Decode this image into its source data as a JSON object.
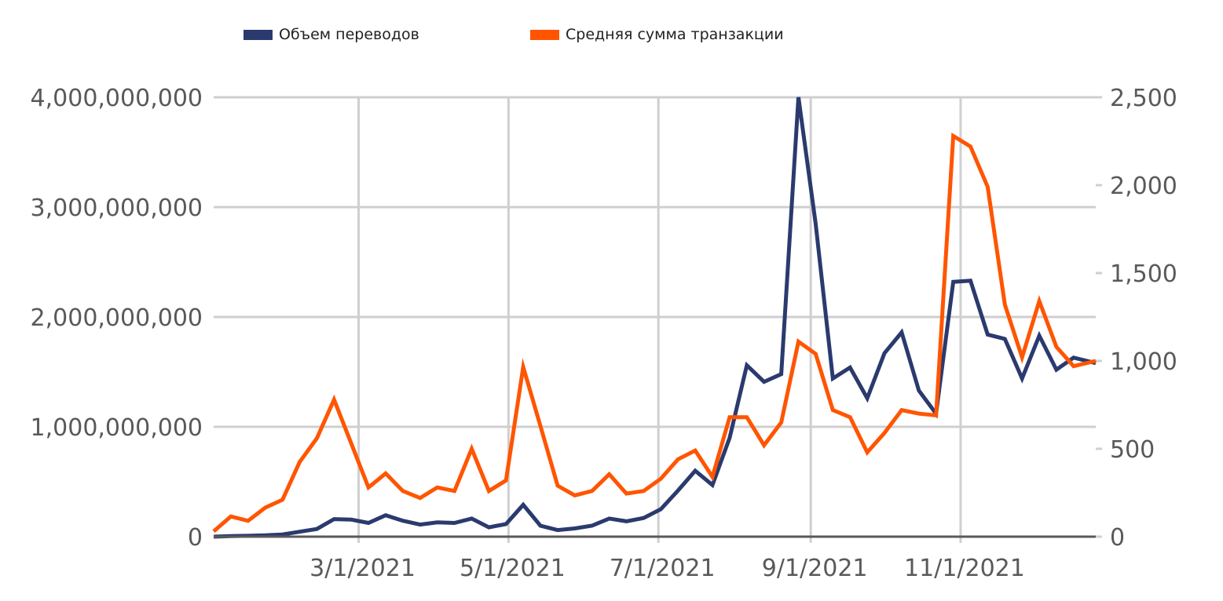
{
  "chart_data": {
    "type": "line",
    "legend_position": "top",
    "grid": true,
    "x_axis": {
      "ticks": [
        "3/1/2021",
        "5/1/2021",
        "7/1/2021",
        "9/1/2021",
        "11/1/2021"
      ],
      "range": [
        "2021-01-01",
        "2021-12-26"
      ]
    },
    "y_left": {
      "ticks": [
        "4,000,000,000",
        "3,000,000,000",
        "2,000,000,000",
        "1,000,000,000",
        "0"
      ],
      "tick_values": [
        4000000000,
        3000000000,
        2000000000,
        1000000000,
        0
      ],
      "ylim": [
        0,
        4000000000
      ]
    },
    "y_right": {
      "ticks": [
        "2,500",
        "2,000",
        "1,500",
        "1,000",
        "500",
        "0"
      ],
      "tick_values": [
        2500,
        2000,
        1500,
        1000,
        500,
        0
      ],
      "ylim": [
        0,
        2500
      ]
    },
    "x": [
      "2021-01-01",
      "2021-01-08",
      "2021-01-15",
      "2021-01-22",
      "2021-01-29",
      "2021-02-05",
      "2021-02-12",
      "2021-02-19",
      "2021-02-26",
      "2021-03-05",
      "2021-03-12",
      "2021-03-19",
      "2021-03-26",
      "2021-04-02",
      "2021-04-09",
      "2021-04-16",
      "2021-04-23",
      "2021-04-30",
      "2021-05-07",
      "2021-05-14",
      "2021-05-21",
      "2021-05-28",
      "2021-06-04",
      "2021-06-11",
      "2021-06-18",
      "2021-06-25",
      "2021-07-02",
      "2021-07-09",
      "2021-07-16",
      "2021-07-23",
      "2021-07-30",
      "2021-08-06",
      "2021-08-13",
      "2021-08-20",
      "2021-08-27",
      "2021-09-03",
      "2021-09-10",
      "2021-09-17",
      "2021-09-24",
      "2021-10-01",
      "2021-10-08",
      "2021-10-15",
      "2021-10-22",
      "2021-10-29",
      "2021-11-05",
      "2021-11-12",
      "2021-11-19",
      "2021-11-26",
      "2021-12-03",
      "2021-12-10",
      "2021-12-17",
      "2021-12-26"
    ],
    "series": [
      {
        "name": "Объем переводов",
        "axis": "left",
        "color": "#2b3a6e",
        "values": [
          0,
          5000000,
          8000000,
          12000000,
          20000000,
          45000000,
          70000000,
          160000000,
          155000000,
          125000000,
          195000000,
          145000000,
          110000000,
          130000000,
          125000000,
          165000000,
          85000000,
          115000000,
          290000000,
          100000000,
          60000000,
          75000000,
          100000000,
          165000000,
          140000000,
          170000000,
          250000000,
          420000000,
          600000000,
          470000000,
          900000000,
          1560000000,
          1410000000,
          1480000000,
          4000000000,
          2850000000,
          1440000000,
          1540000000,
          1260000000,
          1670000000,
          1860000000,
          1330000000,
          1120000000,
          2320000000,
          2330000000,
          1840000000,
          1800000000,
          1440000000,
          1830000000,
          1520000000,
          1630000000,
          1580000000
        ]
      },
      {
        "name": "Средняя сумма транзакции",
        "axis": "right",
        "color": "#ff5500",
        "values": [
          30,
          115,
          90,
          165,
          210,
          425,
          560,
          780,
          530,
          280,
          360,
          260,
          220,
          280,
          260,
          500,
          260,
          320,
          965,
          630,
          290,
          235,
          260,
          355,
          245,
          260,
          330,
          440,
          490,
          340,
          680,
          680,
          520,
          650,
          1110,
          1040,
          720,
          680,
          480,
          590,
          720,
          700,
          690,
          2280,
          2220,
          1990,
          1320,
          1020,
          1340,
          1080,
          970,
          1000
        ]
      }
    ]
  }
}
